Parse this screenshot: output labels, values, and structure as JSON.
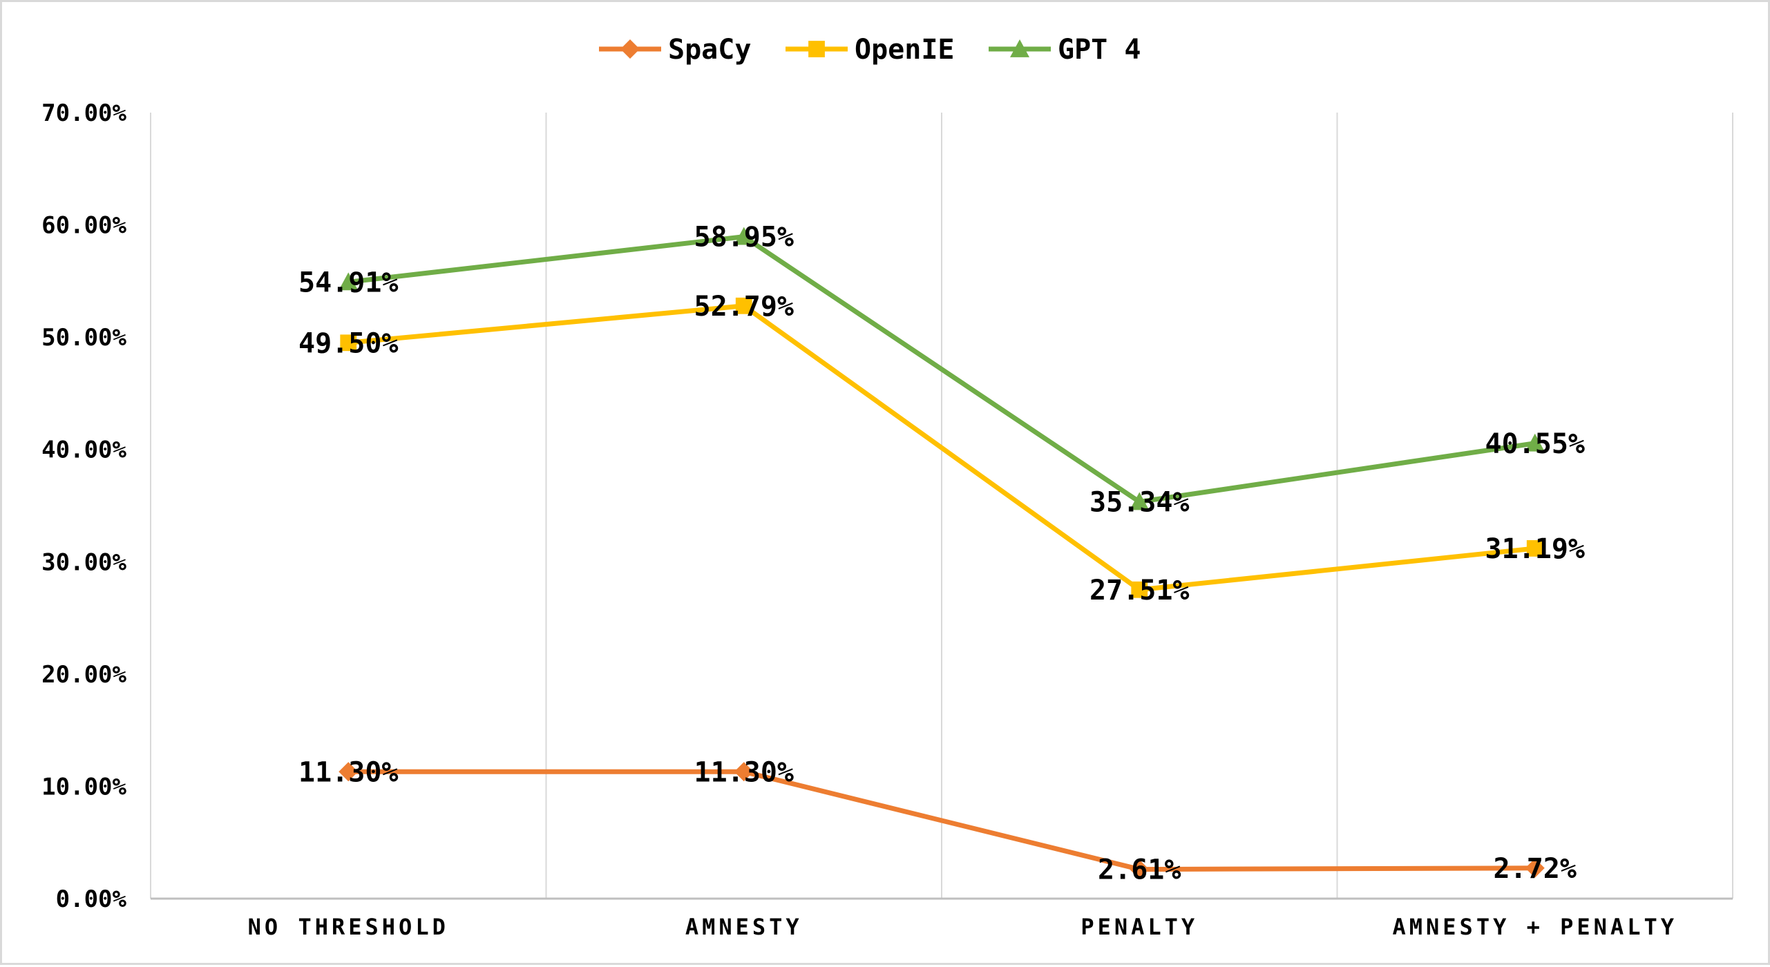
{
  "chart_data": {
    "type": "line",
    "title": "",
    "xlabel": "",
    "ylabel": "",
    "categories": [
      "NO THRESHOLD",
      "AMNESTY",
      "PENALTY",
      "AMNESTY + PENALTY"
    ],
    "ylim": [
      0,
      70
    ],
    "yticks": [
      "0.00%",
      "10.00%",
      "20.00%",
      "30.00%",
      "40.00%",
      "50.00%",
      "60.00%",
      "70.00%"
    ],
    "grid": "vertical lines between categories",
    "legend_position": "top",
    "series": [
      {
        "name": "SpaCy",
        "color": "#ED7D31",
        "marker": "diamond",
        "values": [
          11.3,
          11.3,
          2.61,
          2.72
        ],
        "labels": [
          "11.30%",
          "11.30%",
          "2.61%",
          "2.72%"
        ]
      },
      {
        "name": "OpenIE",
        "color": "#FFC000",
        "marker": "square",
        "values": [
          49.5,
          52.79,
          27.51,
          31.19
        ],
        "labels": [
          "49.50%",
          "52.79%",
          "27.51%",
          "31.19%"
        ]
      },
      {
        "name": "GPT 4",
        "color": "#70AD47",
        "marker": "triangle",
        "values": [
          54.91,
          58.95,
          35.34,
          40.55
        ],
        "labels": [
          "54.91%",
          "58.95%",
          "35.34%",
          "40.55%"
        ]
      }
    ]
  }
}
